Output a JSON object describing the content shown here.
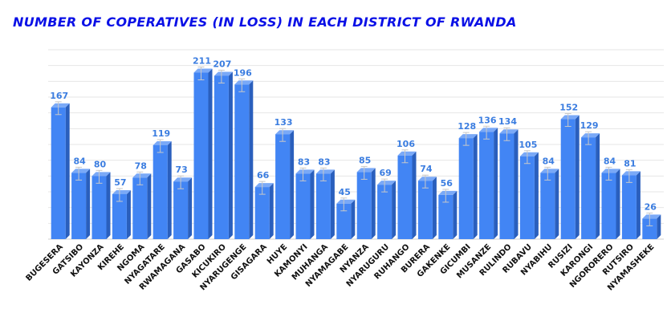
{
  "chart_data": {
    "type": "bar",
    "title": "NUMBER OF COPERATIVES (IN LOSS) IN EACH DISTRICT OF RWANDA",
    "xlabel": "",
    "ylabel": "",
    "ylim": [
      0,
      240
    ],
    "grid": true,
    "legend": "none",
    "bar_color": "#4285f4",
    "bar_side_color": "#2a5fbd",
    "bar_top_color": "#7aa9f7",
    "label_color": "#3b7de0",
    "title_color": "#0a10e6",
    "categories": [
      "BUGESERA",
      "GATSIBO",
      "KAYONZA",
      "KIREHE",
      "NGOMA",
      "NYAGATARE",
      "RWAMAGANA",
      "GASABO",
      "KICUKIRO",
      "NYARUGENGE",
      "GISAGARA",
      "HUYE",
      "KAMONYI",
      "MUHANGA",
      "NYAMAGABE",
      "NYANZA",
      "NYARUGURU",
      "RUHANGO",
      "BURERA",
      "GAKENKE",
      "GICUMBI",
      "MUSANZE",
      "RULINDO",
      "RUBAVU",
      "NYABIHU",
      "RUSIZI",
      "KARONGI",
      "NGORORERO",
      "RUTSIRO",
      "NYAMASHEKE"
    ],
    "values": [
      167,
      84,
      80,
      57,
      78,
      119,
      73,
      211,
      207,
      196,
      66,
      133,
      83,
      83,
      45,
      85,
      69,
      106,
      74,
      56,
      128,
      136,
      134,
      105,
      84,
      152,
      129,
      84,
      81,
      26
    ]
  }
}
